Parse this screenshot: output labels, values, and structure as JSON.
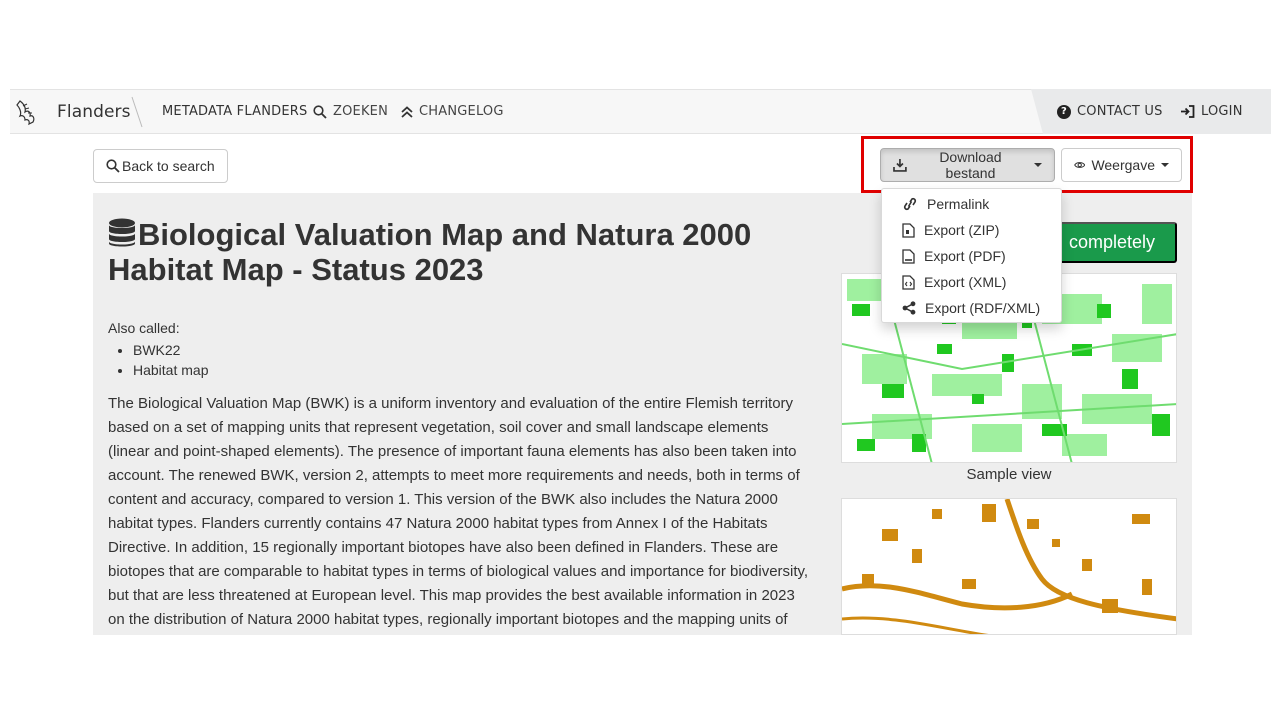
{
  "navbar": {
    "brand": "Flanders",
    "links": {
      "metadata": "METADATA FLANDERS",
      "search": "ZOEKEN",
      "changelog": "CHANGELOG",
      "contact": "CONTACT US",
      "login": "LOGIN"
    },
    "help_glyph": "?"
  },
  "toolbar": {
    "back": "Back to search",
    "download": "Download bestand",
    "view": "Weergave"
  },
  "dropdown": {
    "items": [
      "Permalink",
      "Export (ZIP)",
      "Export (PDF)",
      "Export (XML)",
      "Export (RDF/XML)"
    ]
  },
  "record": {
    "title": "Biological Valuation Map and Natura 2000 Habitat Map - Status 2023",
    "also_called_label": "Also called:",
    "aliases": [
      "BWK22",
      "Habitat map"
    ],
    "description": "The Biological Valuation Map (BWK) is a uniform inventory and evaluation of the entire Flemish territory based on a set of mapping units that represent vegetation, soil cover and small landscape elements (linear and point-shaped elements). The presence of important fauna elements has also been taken into account. The renewed BWK, version 2, attempts to meet more requirements and needs, both in terms of content and accuracy, compared to version 1. This version of the BWK also includes the Natura 2000 habitat types. Flanders currently contains 47 Natura 2000 habitat types from Annex I of the Habitats Directive. In addition, 15 regionally important biotopes have also been defined in Flanders. These are biotopes that are comparable to habitat types in terms of biological values and importance for biodiversity, but that are less threatened at European level. This map provides the best available information in 2023 on the distribution of Natura 2000 habitat types, regionally important biotopes and the mapping units of",
    "complete_button": "completely",
    "sample_caption": "Sample view"
  },
  "colors": {
    "highlight": "#e00000",
    "complete_green": "#1a9a4b",
    "map_green": "#22cc22",
    "map_orange": "#d08a10"
  }
}
